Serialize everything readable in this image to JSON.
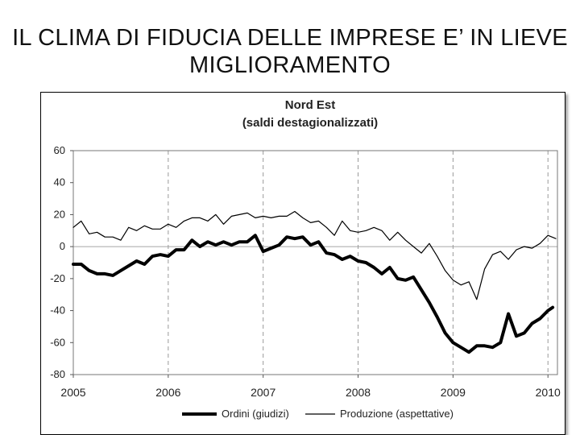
{
  "slide": {
    "title_line1": "IL CLIMA DI FIDUCIA DELLE IMPRESE E’ IN LIEVE",
    "title_line2": "MIGLIORAMENTO"
  },
  "chart_data": {
    "type": "line",
    "title": "Nord Est",
    "subtitle": "(saldi destagionalizzati)",
    "xlabel": "",
    "ylabel": "",
    "ylim": [
      -80,
      60
    ],
    "xlim": [
      2005.0,
      2010.1
    ],
    "grid": "dashed vertical year lines",
    "legend_position": "bottom",
    "y_ticks": [
      60,
      40,
      20,
      0,
      -20,
      -40,
      -60,
      -80
    ],
    "x_ticks": [
      {
        "value": 2005,
        "label": "2005"
      },
      {
        "value": 2006,
        "label": "2006"
      },
      {
        "value": 2007,
        "label": "2007"
      },
      {
        "value": 2008,
        "label": "2008"
      },
      {
        "value": 2009,
        "label": "2009"
      },
      {
        "value": 2010,
        "label": "2010"
      }
    ],
    "series": [
      {
        "name": "Ordini (giudizi)",
        "color": "#000000",
        "style": "thick",
        "points": [
          [
            2005.0,
            -11
          ],
          [
            2005.083,
            -11
          ],
          [
            2005.167,
            -15
          ],
          [
            2005.25,
            -17
          ],
          [
            2005.333,
            -17
          ],
          [
            2005.417,
            -18
          ],
          [
            2005.5,
            -15
          ],
          [
            2005.583,
            -12
          ],
          [
            2005.667,
            -9
          ],
          [
            2005.75,
            -11
          ],
          [
            2005.833,
            -6
          ],
          [
            2005.917,
            -5
          ],
          [
            2006.0,
            -6
          ],
          [
            2006.083,
            -2
          ],
          [
            2006.167,
            -2
          ],
          [
            2006.25,
            4
          ],
          [
            2006.333,
            0
          ],
          [
            2006.417,
            3
          ],
          [
            2006.5,
            1
          ],
          [
            2006.583,
            3
          ],
          [
            2006.667,
            1
          ],
          [
            2006.75,
            3
          ],
          [
            2006.833,
            3
          ],
          [
            2006.917,
            7
          ],
          [
            2007.0,
            -3
          ],
          [
            2007.083,
            -1
          ],
          [
            2007.167,
            1
          ],
          [
            2007.25,
            6
          ],
          [
            2007.333,
            5
          ],
          [
            2007.417,
            6
          ],
          [
            2007.5,
            1
          ],
          [
            2007.583,
            3
          ],
          [
            2007.667,
            -4
          ],
          [
            2007.75,
            -5
          ],
          [
            2007.833,
            -8
          ],
          [
            2007.917,
            -6
          ],
          [
            2008.0,
            -9
          ],
          [
            2008.083,
            -10
          ],
          [
            2008.167,
            -13
          ],
          [
            2008.25,
            -17
          ],
          [
            2008.333,
            -13
          ],
          [
            2008.417,
            -20
          ],
          [
            2008.5,
            -21
          ],
          [
            2008.583,
            -19
          ],
          [
            2008.667,
            -27
          ],
          [
            2008.75,
            -35
          ],
          [
            2008.833,
            -44
          ],
          [
            2008.917,
            -54
          ],
          [
            2009.0,
            -60
          ],
          [
            2009.083,
            -63
          ],
          [
            2009.167,
            -66
          ],
          [
            2009.25,
            -62
          ],
          [
            2009.333,
            -62
          ],
          [
            2009.417,
            -63
          ],
          [
            2009.5,
            -60
          ],
          [
            2009.583,
            -42
          ],
          [
            2009.667,
            -56
          ],
          [
            2009.75,
            -54
          ],
          [
            2009.833,
            -48
          ],
          [
            2009.917,
            -45
          ],
          [
            2010.0,
            -40
          ],
          [
            2010.05,
            -38
          ]
        ]
      },
      {
        "name": "Produzione (aspettative)",
        "color": "#000000",
        "style": "thin",
        "points": [
          [
            2005.0,
            12
          ],
          [
            2005.083,
            16
          ],
          [
            2005.167,
            8
          ],
          [
            2005.25,
            9
          ],
          [
            2005.333,
            6
          ],
          [
            2005.417,
            6
          ],
          [
            2005.5,
            4
          ],
          [
            2005.583,
            12
          ],
          [
            2005.667,
            10
          ],
          [
            2005.75,
            13
          ],
          [
            2005.833,
            11
          ],
          [
            2005.917,
            11
          ],
          [
            2006.0,
            14
          ],
          [
            2006.083,
            12
          ],
          [
            2006.167,
            16
          ],
          [
            2006.25,
            18
          ],
          [
            2006.333,
            18
          ],
          [
            2006.417,
            16
          ],
          [
            2006.5,
            20
          ],
          [
            2006.583,
            14
          ],
          [
            2006.667,
            19
          ],
          [
            2006.75,
            20
          ],
          [
            2006.833,
            21
          ],
          [
            2006.917,
            18
          ],
          [
            2007.0,
            19
          ],
          [
            2007.083,
            18
          ],
          [
            2007.167,
            19
          ],
          [
            2007.25,
            19
          ],
          [
            2007.333,
            22
          ],
          [
            2007.417,
            18
          ],
          [
            2007.5,
            15
          ],
          [
            2007.583,
            16
          ],
          [
            2007.667,
            12
          ],
          [
            2007.75,
            7
          ],
          [
            2007.833,
            16
          ],
          [
            2007.917,
            10
          ],
          [
            2008.0,
            9
          ],
          [
            2008.083,
            10
          ],
          [
            2008.167,
            12
          ],
          [
            2008.25,
            10
          ],
          [
            2008.333,
            4
          ],
          [
            2008.417,
            9
          ],
          [
            2008.5,
            4
          ],
          [
            2008.583,
            0
          ],
          [
            2008.667,
            -4
          ],
          [
            2008.75,
            2
          ],
          [
            2008.833,
            -6
          ],
          [
            2008.917,
            -15
          ],
          [
            2009.0,
            -21
          ],
          [
            2009.083,
            -24
          ],
          [
            2009.167,
            -22
          ],
          [
            2009.25,
            -33
          ],
          [
            2009.333,
            -14
          ],
          [
            2009.417,
            -5
          ],
          [
            2009.5,
            -3
          ],
          [
            2009.583,
            -8
          ],
          [
            2009.667,
            -2
          ],
          [
            2009.75,
            0
          ],
          [
            2009.833,
            -1
          ],
          [
            2009.917,
            2
          ],
          [
            2010.0,
            7
          ],
          [
            2010.083,
            5
          ]
        ]
      }
    ]
  }
}
